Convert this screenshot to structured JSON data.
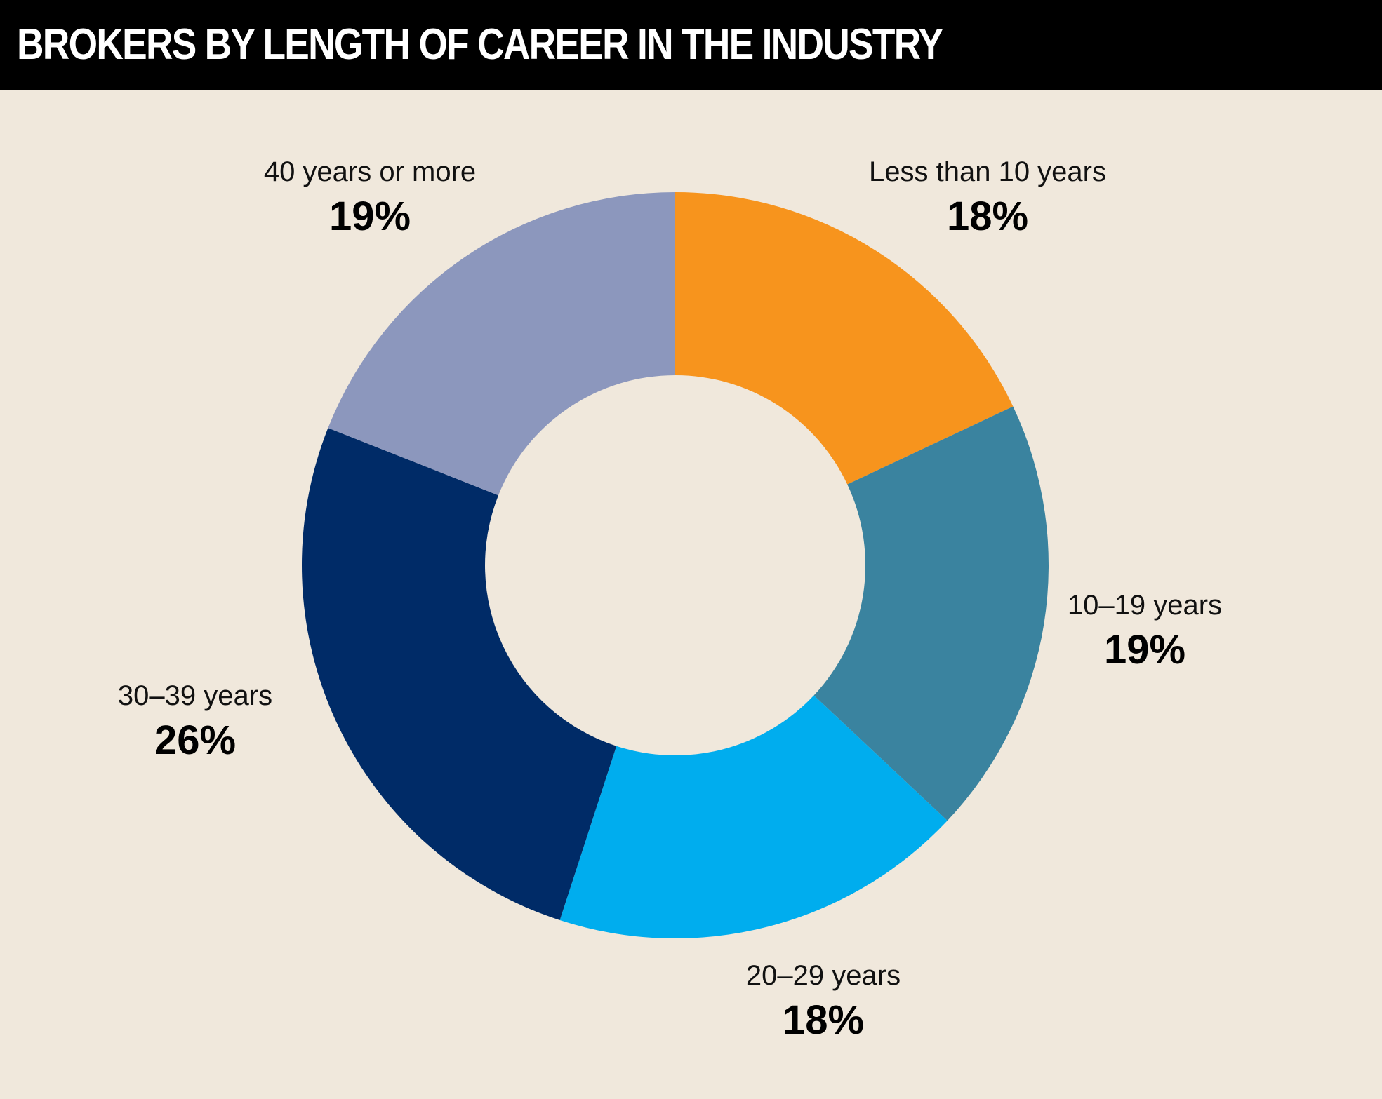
{
  "chart_data": {
    "type": "pie",
    "title": "BROKERS BY LENGTH OF CAREER IN THE INDUSTRY",
    "style": "donut",
    "slices": [
      {
        "label": "Less than 10 years",
        "value": 18,
        "value_label": "18%",
        "color": "#f7941d"
      },
      {
        "label": "10–19 years",
        "value": 19,
        "value_label": "19%",
        "color": "#3a839f"
      },
      {
        "label": "20–29 years",
        "value": 18,
        "value_label": "18%",
        "color": "#00adee"
      },
      {
        "label": "30–39 years",
        "value": 26,
        "value_label": "26%",
        "color": "#002b67"
      },
      {
        "label": "40 years or more",
        "value": 19,
        "value_label": "19%",
        "color": "#8c97bd"
      }
    ],
    "start": "top",
    "direction": "clockwise"
  },
  "colors": {
    "background": "#f0e8dc",
    "title_bar": "#000000",
    "title_text": "#ffffff"
  }
}
